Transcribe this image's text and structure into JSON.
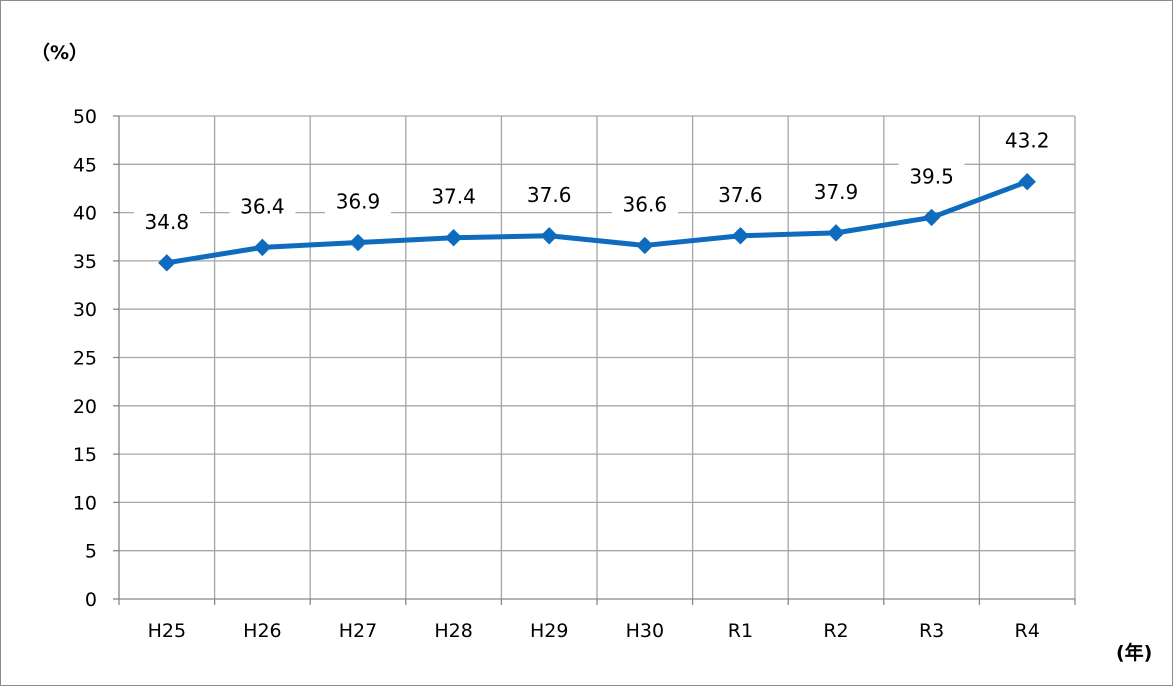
{
  "chart_data": {
    "type": "line",
    "categories": [
      "H25",
      "H26",
      "H27",
      "H28",
      "H29",
      "H30",
      "R1",
      "R2",
      "R3",
      "R4"
    ],
    "series": [
      {
        "values": [
          34.8,
          36.4,
          36.9,
          37.4,
          37.6,
          36.6,
          37.6,
          37.9,
          39.5,
          43.2
        ]
      }
    ],
    "data_labels": [
      "34.8",
      "36.4",
      "36.9",
      "37.4",
      "37.6",
      "36.6",
      "37.6",
      "37.9",
      "39.5",
      "43.2"
    ],
    "y_unit_label": "（%）",
    "x_unit_label": "(年)",
    "ylim": [
      0,
      50
    ],
    "y_ticks": [
      "0",
      "5",
      "10",
      "15",
      "20",
      "25",
      "30",
      "35",
      "40",
      "45",
      "50"
    ],
    "grid": true,
    "marker": "diamond",
    "colors": {
      "series": "#0e6bbd",
      "grid": "#a6a6a6",
      "axis": "#868686"
    }
  }
}
